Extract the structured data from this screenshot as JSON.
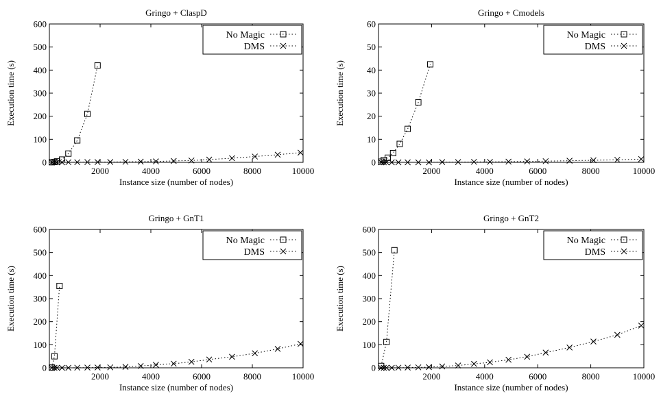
{
  "chart_data": [
    {
      "type": "scatter",
      "title": "Gringo + ClaspD",
      "xlabel": "Instance size (number of nodes)",
      "ylabel": "Execution time (s)",
      "xlim": [
        0,
        10000
      ],
      "ylim": [
        0,
        600
      ],
      "xticks": [
        2000,
        4000,
        6000,
        8000,
        10000
      ],
      "yticks": [
        0,
        100,
        200,
        300,
        400,
        500,
        600
      ],
      "legend": "top-right",
      "grid": false,
      "series": [
        {
          "name": "No Magic",
          "marker": "square",
          "x": [
            100,
            200,
            300,
            500,
            750,
            1100,
            1500,
            1900
          ],
          "y": [
            0.5,
            1.5,
            4,
            12,
            38,
            95,
            210,
            420
          ]
        },
        {
          "name": "DMS",
          "marker": "cross",
          "x": [
            100,
            200,
            300,
            500,
            750,
            1100,
            1500,
            1900,
            2400,
            3000,
            3600,
            4200,
            4900,
            5600,
            6300,
            7200,
            8100,
            9000,
            9900
          ],
          "y": [
            0,
            0,
            0,
            0,
            0.5,
            0.5,
            1,
            1,
            1.5,
            2,
            3,
            4,
            6,
            8,
            12,
            18,
            25,
            33,
            42
          ]
        }
      ]
    },
    {
      "type": "scatter",
      "title": "Gringo + Cmodels",
      "xlabel": "Instance size (number of nodes)",
      "ylabel": "Execution time (s)",
      "xlim": [
        0,
        10000
      ],
      "ylim": [
        0,
        60
      ],
      "xticks": [
        2000,
        4000,
        6000,
        8000,
        10000
      ],
      "yticks": [
        0,
        10,
        20,
        30,
        40,
        50,
        60
      ],
      "legend": "top-right",
      "grid": false,
      "series": [
        {
          "name": "No Magic",
          "marker": "square",
          "x": [
            100,
            200,
            350,
            550,
            800,
            1100,
            1500,
            1950
          ],
          "y": [
            0.3,
            1,
            2,
            4,
            8,
            14.5,
            26,
            42.5
          ]
        },
        {
          "name": "DMS",
          "marker": "cross",
          "x": [
            100,
            200,
            300,
            500,
            750,
            1100,
            1500,
            1900,
            2400,
            3000,
            3600,
            4200,
            4900,
            5600,
            6300,
            7200,
            8100,
            9000,
            9900
          ],
          "y": [
            0,
            0,
            0,
            0,
            0,
            0,
            0,
            0,
            0.1,
            0.1,
            0.2,
            0.2,
            0.3,
            0.4,
            0.5,
            0.7,
            0.9,
            1.1,
            1.4
          ]
        }
      ]
    },
    {
      "type": "scatter",
      "title": "Gringo + GnT1",
      "xlabel": "Instance size (number of nodes)",
      "ylabel": "Execution time (s)",
      "xlim": [
        0,
        10000
      ],
      "ylim": [
        0,
        600
      ],
      "xticks": [
        2000,
        4000,
        6000,
        8000,
        10000
      ],
      "yticks": [
        0,
        100,
        200,
        300,
        400,
        500,
        600
      ],
      "legend": "top-right",
      "grid": false,
      "series": [
        {
          "name": "No Magic",
          "marker": "square",
          "x": [
            100,
            200,
            400
          ],
          "y": [
            1,
            50,
            355
          ]
        },
        {
          "name": "DMS",
          "marker": "cross",
          "x": [
            100,
            200,
            300,
            500,
            750,
            1100,
            1500,
            1900,
            2400,
            3000,
            3600,
            4200,
            4900,
            5600,
            6300,
            7200,
            8100,
            9000,
            9900
          ],
          "y": [
            0,
            0,
            0,
            0,
            0,
            0.5,
            1,
            1.5,
            2,
            4,
            8,
            13,
            18,
            26,
            36,
            48,
            63,
            82,
            104
          ]
        }
      ]
    },
    {
      "type": "scatter",
      "title": "Gringo + GnT2",
      "xlabel": "Instance size (number of nodes)",
      "ylabel": "Execution time (s)",
      "xlim": [
        0,
        10000
      ],
      "ylim": [
        0,
        600
      ],
      "xticks": [
        2000,
        4000,
        6000,
        8000,
        10000
      ],
      "yticks": [
        0,
        100,
        200,
        300,
        400,
        500,
        600
      ],
      "legend": "top-right",
      "grid": false,
      "series": [
        {
          "name": "No Magic",
          "marker": "square",
          "x": [
            100,
            300,
            600
          ],
          "y": [
            8,
            112,
            510
          ]
        },
        {
          "name": "DMS",
          "marker": "cross",
          "x": [
            100,
            200,
            300,
            500,
            750,
            1100,
            1500,
            1900,
            2400,
            3000,
            3600,
            4200,
            4900,
            5600,
            6300,
            7200,
            8100,
            9000,
            9900
          ],
          "y": [
            0,
            0,
            0,
            0,
            0.5,
            1,
            2,
            3,
            6,
            10,
            17,
            24,
            35,
            48,
            66,
            88,
            114,
            143,
            183
          ]
        }
      ]
    }
  ]
}
